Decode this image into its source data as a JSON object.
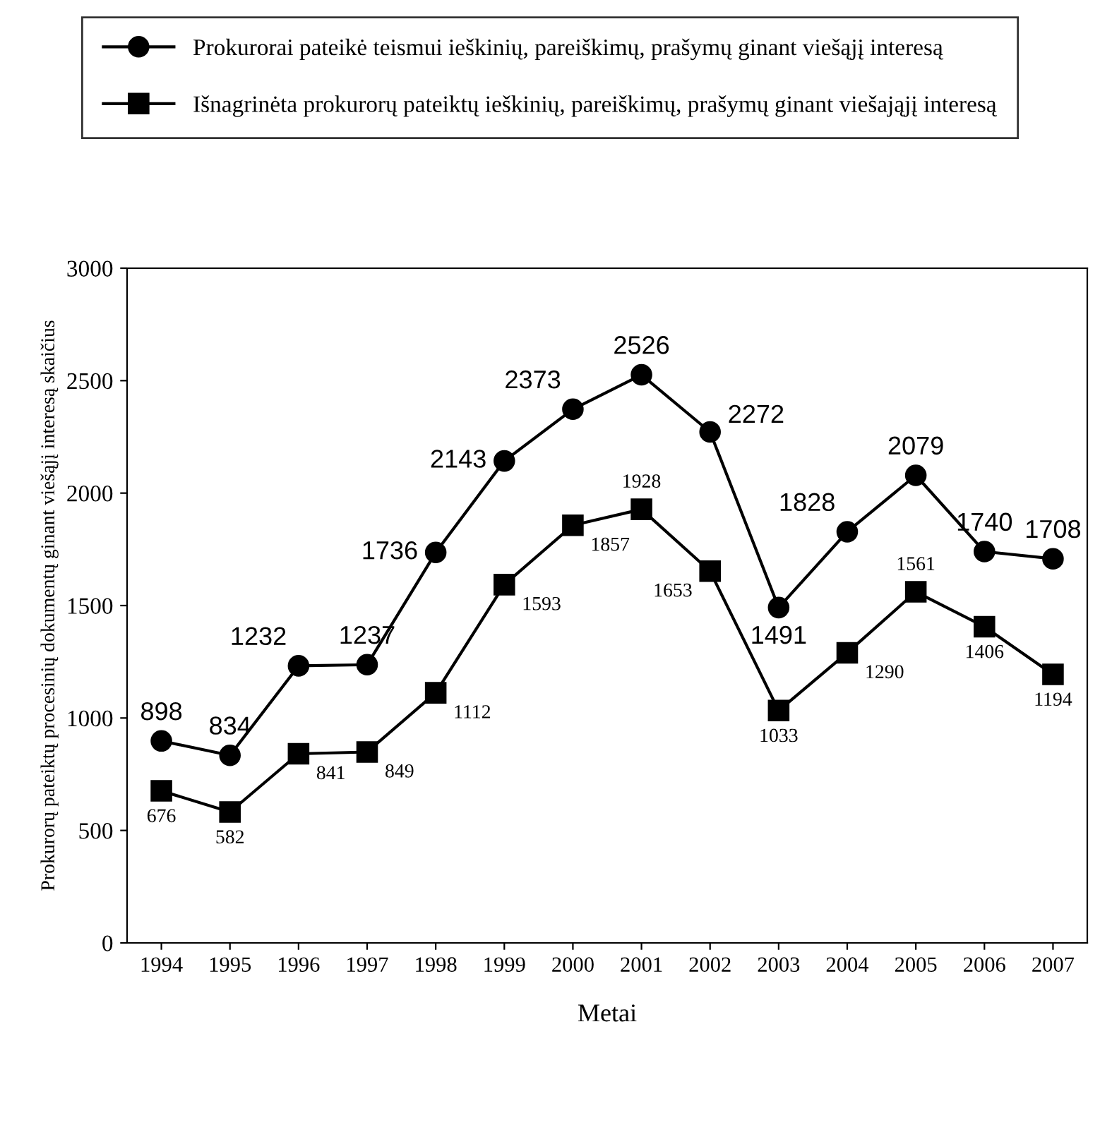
{
  "chart_data": {
    "type": "line",
    "xlabel": "Metai",
    "ylabel": "Prokurorų pateiktų procesinių dokumentų ginant viešąjį interesą skaičius",
    "categories": [
      "1994",
      "1995",
      "1996",
      "1997",
      "1998",
      "1999",
      "2000",
      "2001",
      "2002",
      "2003",
      "2004",
      "2005",
      "2006",
      "2007"
    ],
    "series": [
      {
        "name": "Prokurorai pateikė teismui ieškinių, pareiškimų, prašymų ginant viešąjį interesą",
        "color": "#000000",
        "marker": "circle",
        "values": [
          898,
          834,
          1232,
          1237,
          1736,
          2143,
          2373,
          2526,
          2272,
          1491,
          1828,
          2079,
          1740,
          1708
        ]
      },
      {
        "name": "Išnagrinėta prokurorų pateiktų ieškinių, pareiškimų, prašymų ginant viešająjį interesą",
        "color": "#000000",
        "marker": "square",
        "values": [
          676,
          582,
          841,
          849,
          1112,
          1593,
          1857,
          1928,
          1653,
          1033,
          1290,
          1561,
          1406,
          1194
        ]
      }
    ],
    "ylim": [
      0,
      3000
    ],
    "yticks": [
      0,
      500,
      1000,
      1500,
      2000,
      2500,
      3000
    ],
    "grid": false,
    "legend": "top",
    "data_labels": true,
    "line_style": "solid"
  }
}
